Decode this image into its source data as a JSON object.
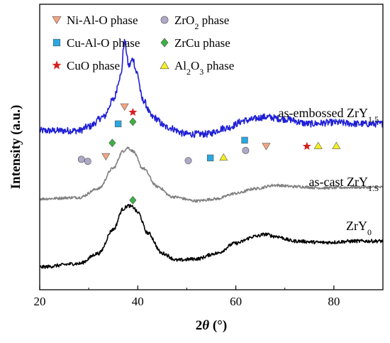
{
  "chart_data": {
    "type": "line",
    "title": "",
    "xlabel": "2θ (°)",
    "ylabel": "Intensity (a.u.)",
    "xlim": [
      20,
      90
    ],
    "x_ticks": [
      20,
      40,
      60,
      80
    ],
    "y_ticks_shown": false,
    "grid": false,
    "legend_position": "top, inside plot, 2 columns",
    "series": [
      {
        "name": "as-embossed ZrY1.5",
        "label_main": "as-embossed ZrY",
        "label_sub": "1.5",
        "color": "#1f1fd6",
        "offset": 2.0,
        "noise": 0.05,
        "points": [
          [
            20,
            0.0
          ],
          [
            28,
            0.0
          ],
          [
            30,
            0.06
          ],
          [
            33,
            0.2
          ],
          [
            35,
            0.45
          ],
          [
            36.5,
            0.8
          ],
          [
            37.3,
            1.3
          ],
          [
            38.2,
            0.95
          ],
          [
            39.0,
            1.05
          ],
          [
            39.8,
            0.85
          ],
          [
            41,
            0.45
          ],
          [
            43,
            0.2
          ],
          [
            46,
            0.05
          ],
          [
            50,
            -0.05
          ],
          [
            54,
            -0.05
          ],
          [
            58,
            0.04
          ],
          [
            62,
            0.15
          ],
          [
            66,
            0.2
          ],
          [
            70,
            0.17
          ],
          [
            75,
            0.1
          ],
          [
            80,
            0.12
          ],
          [
            85,
            0.1
          ],
          [
            90,
            0.1
          ]
        ]
      },
      {
        "name": "as-cast ZrY1.5",
        "label_main": "as-cast ZrY",
        "label_sub": "1.5",
        "color": "#808080",
        "offset": 1.0,
        "noise": 0.02,
        "points": [
          [
            20,
            0.0
          ],
          [
            28,
            0.02
          ],
          [
            32,
            0.15
          ],
          [
            35,
            0.45
          ],
          [
            37,
            0.7
          ],
          [
            38,
            0.75
          ],
          [
            39,
            0.7
          ],
          [
            41,
            0.45
          ],
          [
            44,
            0.18
          ],
          [
            47,
            0.03
          ],
          [
            52,
            -0.03
          ],
          [
            56,
            0.0
          ],
          [
            60,
            0.08
          ],
          [
            64,
            0.15
          ],
          [
            68,
            0.2
          ],
          [
            72,
            0.18
          ],
          [
            78,
            0.16
          ],
          [
            85,
            0.17
          ],
          [
            90,
            0.17
          ]
        ]
      },
      {
        "name": "ZrY0",
        "label_main": "ZrY",
        "label_sub": "0",
        "color": "#000000",
        "offset": 0.0,
        "noise": 0.025,
        "points": [
          [
            20,
            0.0
          ],
          [
            28,
            0.05
          ],
          [
            32,
            0.2
          ],
          [
            35,
            0.55
          ],
          [
            37,
            0.85
          ],
          [
            38,
            0.9
          ],
          [
            39,
            0.88
          ],
          [
            40,
            0.8
          ],
          [
            42,
            0.5
          ],
          [
            45,
            0.2
          ],
          [
            48,
            0.1
          ],
          [
            52,
            0.12
          ],
          [
            56,
            0.2
          ],
          [
            60,
            0.35
          ],
          [
            64,
            0.45
          ],
          [
            66,
            0.48
          ],
          [
            68,
            0.45
          ],
          [
            72,
            0.38
          ],
          [
            78,
            0.36
          ],
          [
            85,
            0.38
          ],
          [
            90,
            0.38
          ]
        ]
      }
    ],
    "phases": [
      {
        "id": "nialo",
        "label_main": "Ni-Al-O phase",
        "marker": "triangle-down",
        "color": "#f4a582"
      },
      {
        "id": "zro2",
        "label_main": "ZrO",
        "label_sub": "2",
        "label_tail": " phase",
        "marker": "circle",
        "color": "#b0a8c8"
      },
      {
        "id": "cualo",
        "label_main": "Cu-Al-O phase",
        "marker": "square",
        "color": "#2aa8e0"
      },
      {
        "id": "zrcu",
        "label_main": "ZrCu phase",
        "marker": "diamond",
        "color": "#3cb043"
      },
      {
        "id": "cuo",
        "label_main": "CuO phase",
        "marker": "star",
        "color": "#d62020"
      },
      {
        "id": "al2o3",
        "label_main": "Al",
        "label_sub": "2",
        "label_mid": "O",
        "label_sub2": "3",
        "label_tail": " phase",
        "marker": "triangle-up",
        "color": "#f5f020"
      }
    ],
    "annotations": [
      {
        "phase": "zro2",
        "x": 28.5,
        "y": 1.58
      },
      {
        "phase": "zro2",
        "x": 29.8,
        "y": 1.55
      },
      {
        "phase": "nialo",
        "x": 33.5,
        "y": 1.62
      },
      {
        "phase": "zrcu",
        "x": 34.8,
        "y": 1.82
      },
      {
        "phase": "cualo",
        "x": 36.0,
        "y": 2.1
      },
      {
        "phase": "nialo",
        "x": 37.3,
        "y": 2.35
      },
      {
        "phase": "cuo",
        "x": 39.0,
        "y": 2.27
      },
      {
        "phase": "zrcu",
        "x": 39.0,
        "y": 2.13
      },
      {
        "phase": "zro2",
        "x": 50.3,
        "y": 1.56
      },
      {
        "phase": "cualo",
        "x": 54.8,
        "y": 1.6
      },
      {
        "phase": "al2o3",
        "x": 57.5,
        "y": 1.61
      },
      {
        "phase": "zro2",
        "x": 62.0,
        "y": 1.71
      },
      {
        "phase": "cualo",
        "x": 61.8,
        "y": 1.86
      },
      {
        "phase": "nialo",
        "x": 66.2,
        "y": 1.77
      },
      {
        "phase": "cuo",
        "x": 74.5,
        "y": 1.77
      },
      {
        "phase": "al2o3",
        "x": 76.8,
        "y": 1.78
      },
      {
        "phase": "al2o3",
        "x": 80.5,
        "y": 1.78
      },
      {
        "phase": "zrcu",
        "x": 39.0,
        "y": 0.98
      }
    ]
  }
}
